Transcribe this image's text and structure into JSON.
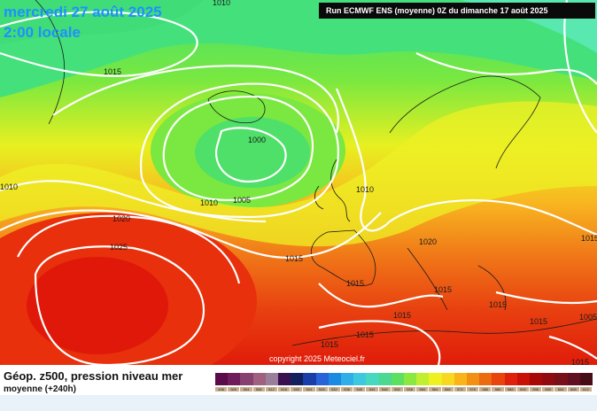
{
  "header": {
    "date_line": "mercredi 27 août 2025",
    "time_line": "2:00 locale",
    "run_info": "Run ECMWF ENS (moyenne) 0Z du dimanche 17 août 2025"
  },
  "map": {
    "isobar_labels": [
      "1010",
      "1015",
      "1000",
      "1005",
      "1010",
      "1010",
      "1010",
      "1020",
      "1025",
      "1015",
      "1020",
      "1015",
      "1015",
      "1015",
      "1015",
      "1015",
      "1015",
      "1015",
      "1015",
      "1005",
      "1015"
    ],
    "copyright": "copyright 2025 Meteociel.fr"
  },
  "legend": {
    "title": "Géop. z500, pression niveau mer",
    "subtitle": "moyenne  (+240h)",
    "scale_values": [
      "496",
      "500",
      "504",
      "508",
      "512",
      "516",
      "520",
      "524",
      "528",
      "532",
      "536",
      "540",
      "544",
      "548",
      "552",
      "556",
      "560",
      "564",
      "568",
      "572",
      "576",
      "580",
      "584",
      "588",
      "592",
      "596",
      "600",
      "604",
      "608",
      "612"
    ],
    "colors": [
      "#5b0a4a",
      "#6e1c5c",
      "#874070",
      "#a0607f",
      "#9a7f9a",
      "#3a1050",
      "#12205e",
      "#1a3ea8",
      "#2a62d8",
      "#1c8ae0",
      "#30aee8",
      "#3ec8e0",
      "#48d8c0",
      "#4cd890",
      "#5ce060",
      "#8ae840",
      "#c0ee30",
      "#eef020",
      "#f8d820",
      "#f8b418",
      "#f29014",
      "#ec6a10",
      "#e8440c",
      "#e0200a",
      "#c81008",
      "#a80806",
      "#900a10",
      "#781018",
      "#601020",
      "#480c18"
    ]
  }
}
